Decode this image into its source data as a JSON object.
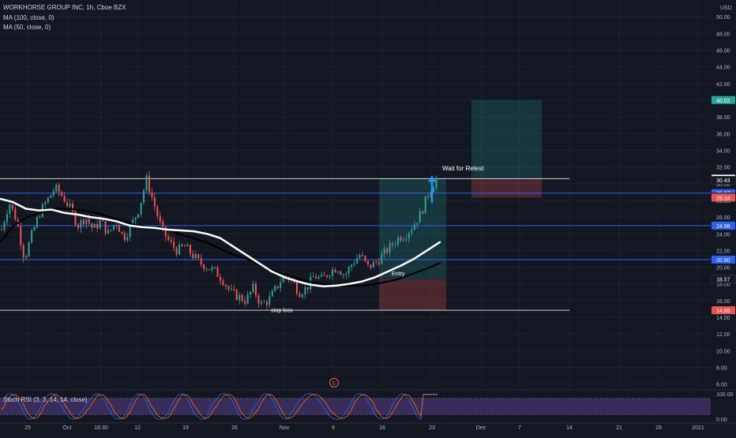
{
  "legend": {
    "symbol": "WORKHORSE GROUP INC, 1h, Cboe BZX",
    "ma100": "MA (100, close, 0)",
    "ma50": "MA (50, close, 0)"
  },
  "rsi_legend": "Stoch RSI (3, 3, 14, 14, close)",
  "currency_label": "USD",
  "earnings_marker": "E",
  "colors": {
    "background": "#131722",
    "bull": "#26a69a",
    "bear": "#ef5350",
    "ma100": "#ffffff",
    "ma50": "#000000",
    "level_line": "#b2b5be",
    "blue_line": "#2962ff",
    "target_zone": "#26a69a",
    "stop_zone": "#ef5350",
    "rsi_band": "#7e57c2",
    "rsi_k": "#2962ff",
    "rsi_d": "#ff6d00"
  },
  "chart_data": {
    "type": "candlestick",
    "y_axis": {
      "range": [
        5.5,
        52
      ],
      "ticks": [
        "50.00",
        "48.00",
        "46.00",
        "44.00",
        "42.00",
        "40.00",
        "38.00",
        "36.00",
        "34.00",
        "32.00",
        "30.00",
        "28.00",
        "26.00",
        "24.00",
        "22.00",
        "20.00",
        "18.00",
        "16.00",
        "14.00",
        "12.00",
        "10.00",
        "8.00",
        "6.00"
      ]
    },
    "x_axis": {
      "ticks": [
        "25",
        "Oct",
        "16:30",
        "12",
        "19",
        "26",
        "Nov",
        "9",
        "16",
        "23",
        "Dec",
        "7",
        "14",
        "21",
        "28",
        "2021"
      ]
    },
    "price_labels": [
      {
        "value": 40.02,
        "text": "40.02",
        "kind": "target"
      },
      {
        "value": 30.61,
        "text": "30.61",
        "kind": "white"
      },
      {
        "value": 30.43,
        "text": "30.43",
        "kind": "dark"
      },
      {
        "value": 28.87,
        "text": "28.87",
        "kind": "blue"
      },
      {
        "value": 28.44,
        "text": "28.44",
        "kind": "dark"
      },
      {
        "value": 28.34,
        "text": "28.34",
        "kind": "stop"
      },
      {
        "value": 24.98,
        "text": "24.98",
        "kind": "blue"
      },
      {
        "value": 20.9,
        "text": "20.90",
        "kind": "blue"
      },
      {
        "value": 18.57,
        "text": "18.57",
        "kind": "dark"
      },
      {
        "value": 14.85,
        "text": "14.85",
        "kind": "stop"
      }
    ],
    "horizontal_levels": [
      {
        "value": 30.61,
        "color": "white"
      },
      {
        "value": 28.87,
        "color": "blue"
      },
      {
        "value": 24.98,
        "color": "blue"
      },
      {
        "value": 20.9,
        "color": "blue"
      },
      {
        "value": 14.85,
        "color": "white"
      }
    ],
    "annotations": [
      {
        "text": "Wait for Retest",
        "x_frac": 0.0,
        "value": 31.6
      },
      {
        "text": "stop loss",
        "value": 14.9
      },
      {
        "text": "Entry",
        "value": 19.3
      }
    ],
    "position_1": {
      "entry": 18.57,
      "stop": 14.85,
      "target": 30.61
    },
    "position_2": {
      "entry": 30.61,
      "stop": 28.34,
      "target": 40.02
    },
    "price_path": [
      24.5,
      27.8,
      25.5,
      21.0,
      24.0,
      26.5,
      28.0,
      29.5,
      28.5,
      27.0,
      25.0,
      26.0,
      24.5,
      25.5,
      24.0,
      25.5,
      23.5,
      25.0,
      27.0,
      30.5,
      27.5,
      24.5,
      23.0,
      22.0,
      22.5,
      21.5,
      20.5,
      20.0,
      19.5,
      18.5,
      17.0,
      16.5,
      16.0,
      17.5,
      15.5,
      16.0,
      17.5,
      19.0,
      18.5,
      17.0,
      17.5,
      19.0,
      18.5,
      19.5,
      20.0,
      19.0,
      20.5,
      21.5,
      20.0,
      20.5,
      21.5,
      22.5,
      23.5,
      24.0,
      25.0,
      26.5,
      29.0,
      30.5
    ],
    "ma100_path": [
      28.2,
      27.8,
      27.0,
      26.8,
      26.9,
      26.5,
      26.3,
      26.0,
      25.8,
      25.5,
      25.0,
      24.8,
      24.7,
      24.5,
      24.4,
      24.3,
      24.0,
      23.5,
      22.5,
      21.5,
      20.5,
      19.5,
      18.8,
      18.3,
      17.9,
      17.7,
      17.8,
      18.0,
      18.3,
      18.8,
      19.5,
      20.2,
      21.0,
      22.0,
      23.0
    ],
    "ma50_path": [
      23.0,
      25.0,
      26.0,
      26.5,
      27.0,
      27.0,
      26.8,
      26.5,
      26.0,
      25.5,
      25.0,
      24.8,
      24.6,
      24.0,
      23.5,
      23.0,
      22.2,
      21.5,
      21.0,
      20.2,
      19.5,
      19.0,
      18.5,
      18.1,
      17.9,
      17.8,
      17.8,
      17.9,
      18.2,
      18.6,
      19.2,
      19.8,
      20.5
    ],
    "rsi": {
      "range": [
        0,
        100
      ],
      "ticks": [
        "100.00",
        "0.00"
      ],
      "band": [
        20,
        80
      ]
    }
  }
}
